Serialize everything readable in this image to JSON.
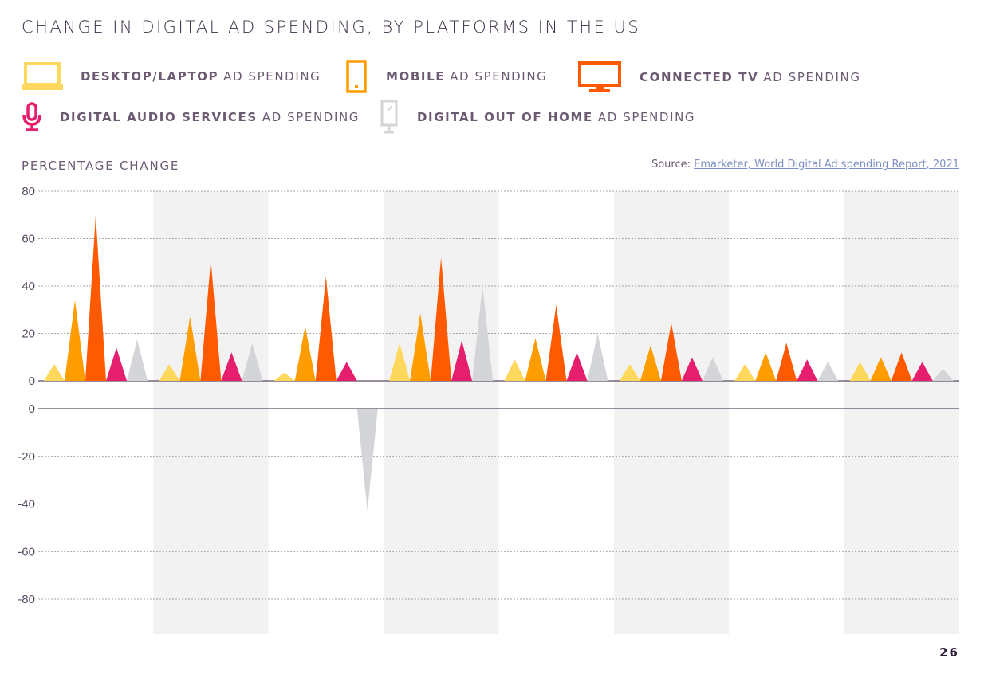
{
  "title": "CHANGE IN DIGITAL AD SPENDING, BY PLATFORMS IN THE US",
  "legend": [
    {
      "bold": "DESKTOP/LAPTOP",
      "rest": "AD SPENDING",
      "icon": "laptop-icon",
      "color": "#fdd85d"
    },
    {
      "bold": "MOBILE",
      "rest": "AD SPENDING",
      "icon": "mobile-phone-icon",
      "color": "#ff9d00"
    },
    {
      "bold": "CONNECTED TV",
      "rest": "AD SPENDING",
      "icon": "tv-icon",
      "color": "#ff5a00"
    },
    {
      "bold": "DIGITAL AUDIO SERVICES",
      "rest": "AD SPENDING",
      "icon": "microphone-icon",
      "color": "#e61e6e"
    },
    {
      "bold": "DIGITAL OUT OF HOME",
      "rest": "AD SPENDING",
      "icon": "billboard-icon",
      "color": "#d4d5d8"
    }
  ],
  "source_label": "Source:",
  "source_link": "Emarketer, World Digital Ad spending Report, 2021",
  "page_number": "26",
  "chart_data": {
    "type": "bar",
    "ylabel": "PERCENTAGE CHANGE",
    "ylim": [
      -80,
      80
    ],
    "yticks_positive": [
      80,
      60,
      40,
      20,
      0
    ],
    "yticks_negative": [
      0,
      -20,
      -40,
      -60,
      -80
    ],
    "grid": true,
    "legend_placement": "top",
    "group_count": 8,
    "series": [
      {
        "name": "DESKTOP/LAPTOP AD SPENDING",
        "color": "#fdd85d",
        "values": [
          7,
          7,
          3.5,
          16,
          9,
          7,
          7,
          8
        ]
      },
      {
        "name": "MOBILE AD SPENDING",
        "color": "#ff9d00",
        "values": [
          34,
          27,
          23,
          28.5,
          18,
          15,
          12,
          10
        ]
      },
      {
        "name": "CONNECTED TV AD SPENDING",
        "color": "#ff5a00",
        "values": [
          70,
          51,
          44,
          52,
          32,
          24.5,
          16,
          12
        ]
      },
      {
        "name": "DIGITAL AUDIO SERVICES AD SPENDING",
        "color": "#e61e6e",
        "values": [
          14,
          12,
          8,
          17,
          12,
          10,
          9,
          8
        ]
      },
      {
        "name": "DIGITAL OUT OF HOME AD SPENDING",
        "color": "#d4d5d8",
        "values": [
          17.5,
          16,
          -43,
          40,
          20,
          10,
          8,
          5
        ]
      }
    ]
  }
}
